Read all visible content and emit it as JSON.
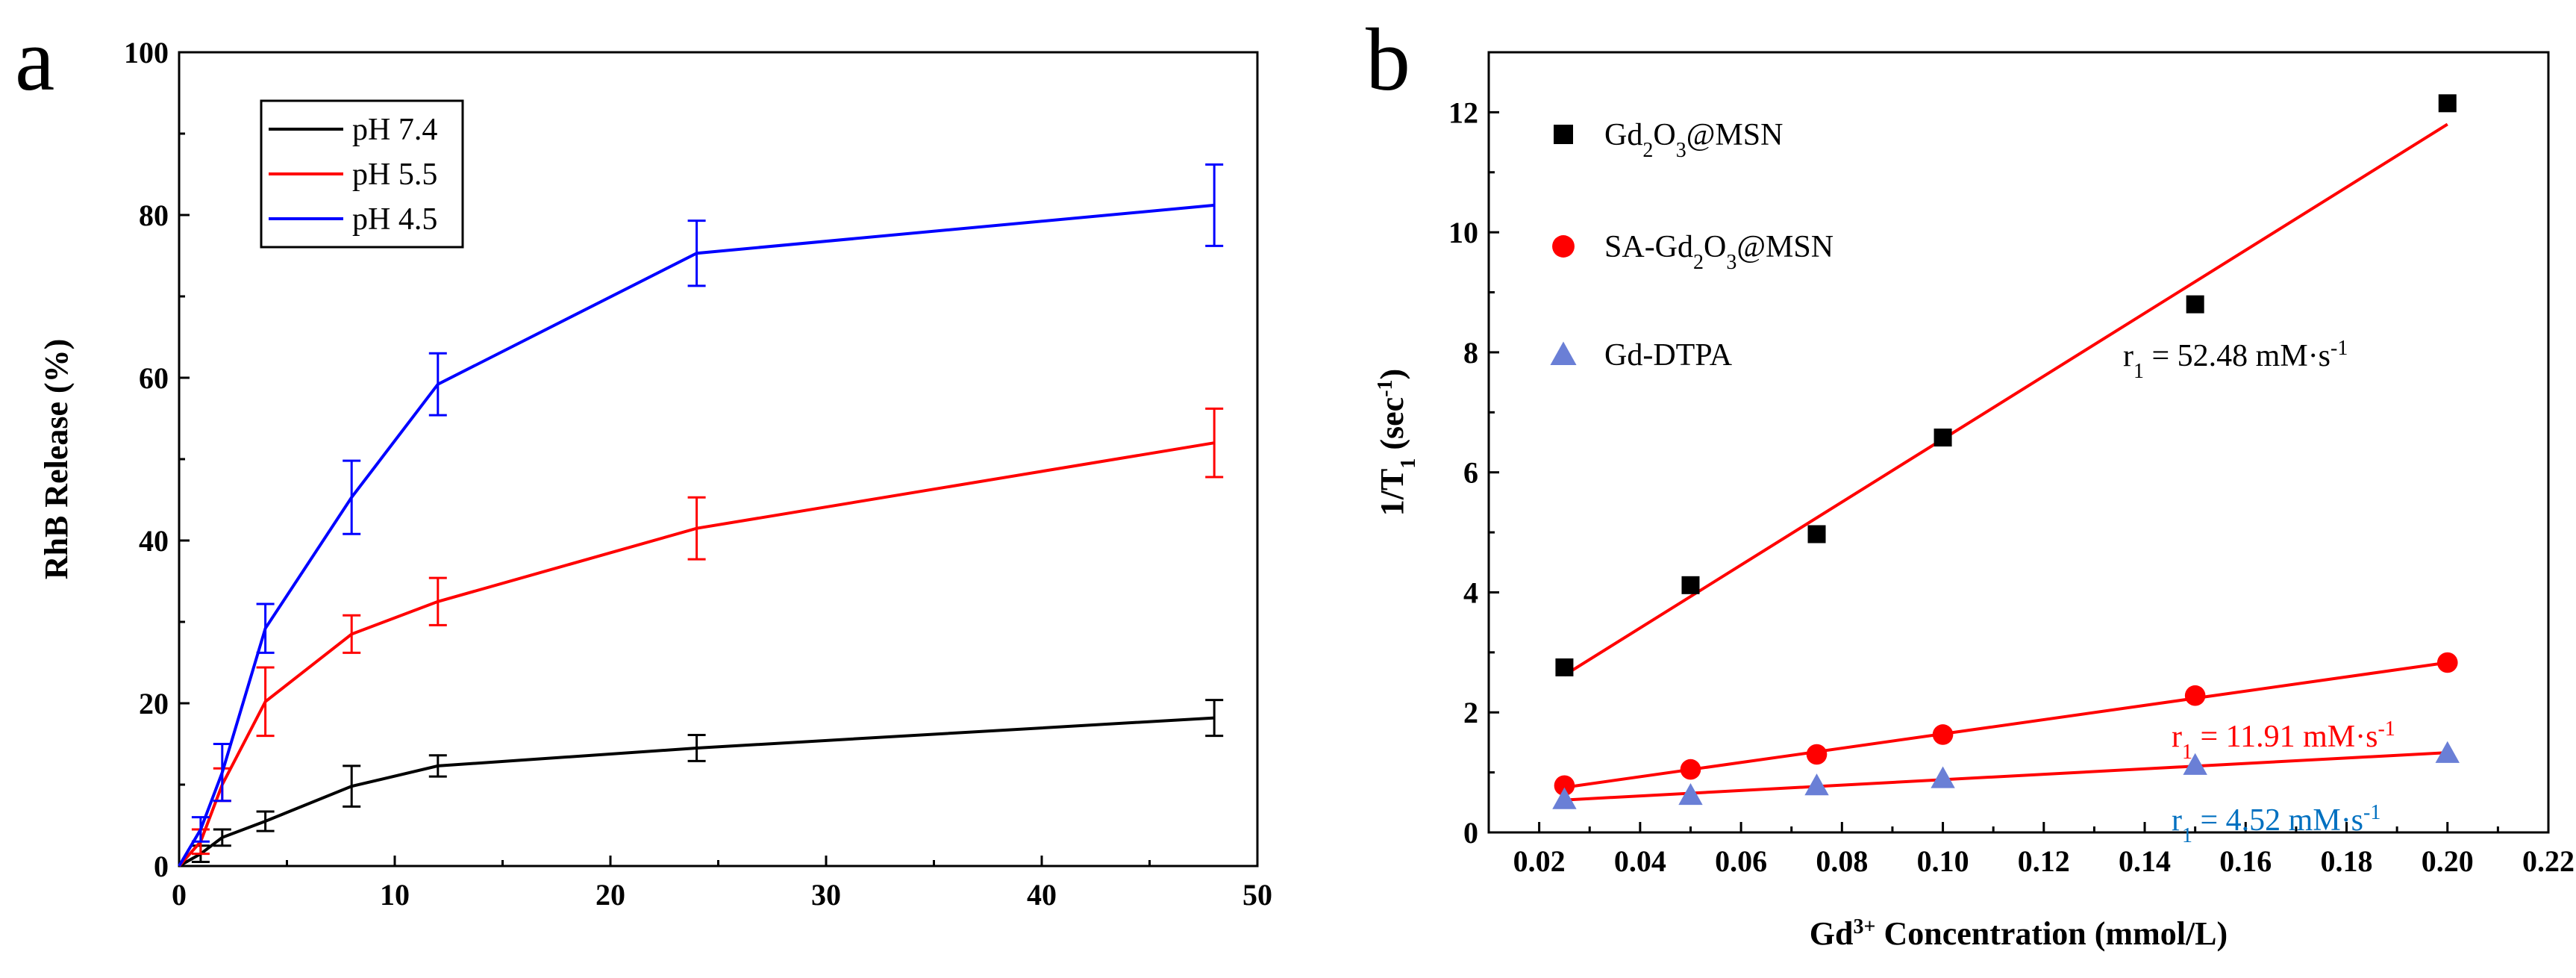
{
  "chart_data": [
    {
      "panel": "a",
      "type": "line",
      "title": "",
      "xlabel": "",
      "ylabel": "RhB Release (%)",
      "xlim": [
        0,
        50
      ],
      "ylim": [
        0,
        100
      ],
      "xticks": [
        "0",
        "10",
        "20",
        "30",
        "40",
        "50"
      ],
      "yticks": [
        "0",
        "20",
        "40",
        "60",
        "80",
        "100"
      ],
      "legend_position": "top-left",
      "x": [
        0,
        1,
        2,
        4,
        8,
        12,
        24,
        48
      ],
      "series": [
        {
          "name": "pH 7.4",
          "color": "#000000",
          "values": [
            0,
            1.5,
            3.5,
            5.5,
            9.8,
            12.3,
            14.5,
            18.2
          ],
          "errors": [
            0,
            1.0,
            1.0,
            1.2,
            2.5,
            1.3,
            1.6,
            2.2
          ]
        },
        {
          "name": "pH 5.5",
          "color": "#ff0000",
          "values": [
            0,
            3,
            10,
            20.2,
            28.5,
            32.5,
            41.5,
            52
          ],
          "errors": [
            0,
            1.5,
            2.0,
            4.2,
            2.3,
            2.9,
            3.8,
            4.2
          ]
        },
        {
          "name": "pH 4.5",
          "color": "#0000ff",
          "values": [
            0,
            4.5,
            11.5,
            29.2,
            45.3,
            59.2,
            75.3,
            81.2
          ],
          "errors": [
            0,
            1.5,
            3.5,
            3.0,
            4.5,
            3.8,
            4.0,
            5.0
          ]
        }
      ]
    },
    {
      "panel": "b",
      "type": "scatter",
      "title": "",
      "xlabel_main": "Gd",
      "xlabel_sup": "3+",
      "xlabel_rest": " Concentration (mmol/L)",
      "ylabel_main": "1/T",
      "ylabel_sub": "1",
      "ylabel_rest": " (sec",
      "ylabel_sup": "-1",
      "ylabel_end": ")",
      "xlim": [
        0.01,
        0.22
      ],
      "ylim": [
        0,
        13
      ],
      "xticks": [
        "0.02",
        "0.04",
        "0.06",
        "0.08",
        "0.10",
        "0.12",
        "0.14",
        "0.16",
        "0.18",
        "0.20",
        "0.22"
      ],
      "yticks": [
        "0",
        "2",
        "4",
        "6",
        "8",
        "10",
        "12"
      ],
      "legend_position": "top-left",
      "x": [
        0.025,
        0.05,
        0.075,
        0.1,
        0.15,
        0.2
      ],
      "series": [
        {
          "name": "Gd2O3@MSN",
          "label_parts": [
            "Gd",
            "2",
            "O",
            "3",
            "@MSN"
          ],
          "marker": "square",
          "color": "#000000",
          "values": [
            2.75,
            4.12,
            4.97,
            6.58,
            8.8,
            12.15
          ],
          "fit": {
            "x": [
              0.025,
              0.2
            ],
            "y": [
              2.62,
              11.8
            ]
          },
          "annotation": "r",
          "annotation_sub": "1",
          "annotation_rest": " = 52.48 mM·s",
          "annotation_sup": "-1",
          "annotation_color": "#000000"
        },
        {
          "name": "SA-Gd2O3@MSN",
          "label_parts": [
            "SA-Gd",
            "2",
            "O",
            "3",
            "@MSN"
          ],
          "marker": "circle",
          "color": "#ff0000",
          "values": [
            0.78,
            1.05,
            1.3,
            1.63,
            2.28,
            2.83
          ],
          "fit": {
            "x": [
              0.025,
              0.2
            ],
            "y": [
              0.75,
              2.83
            ]
          },
          "annotation": "r",
          "annotation_sub": "1",
          "annotation_rest": " = 11.91 mM·s",
          "annotation_sup": "-1",
          "annotation_color": "#ff0000"
        },
        {
          "name": "Gd-DTPA",
          "label_parts": [
            "Gd-DTPA"
          ],
          "marker": "triangle",
          "color": "#6a7fd6",
          "values": [
            0.55,
            0.62,
            0.78,
            0.9,
            1.12,
            1.32
          ],
          "fit": {
            "x": [
              0.025,
              0.2
            ],
            "y": [
              0.54,
              1.33
            ]
          },
          "annotation": "r",
          "annotation_sub": "1",
          "annotation_rest": " = 4.52 mM·s",
          "annotation_sup": "-1",
          "annotation_color": "#0070c0"
        }
      ]
    }
  ]
}
